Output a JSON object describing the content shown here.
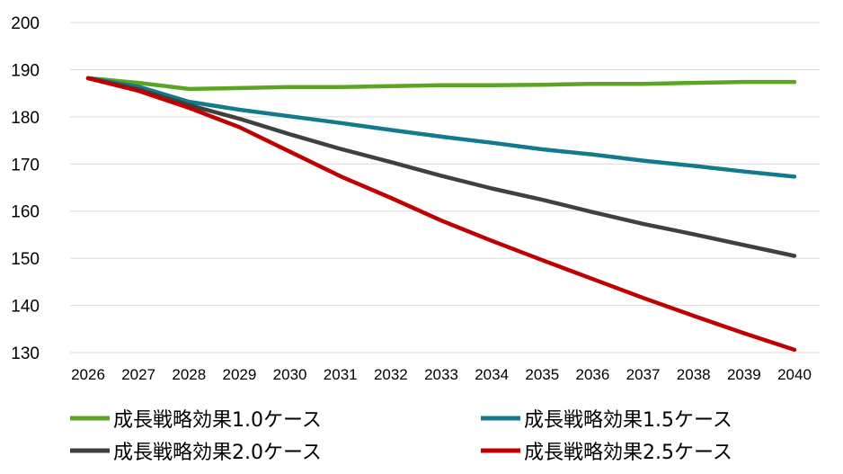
{
  "chart_data": {
    "type": "line",
    "x": [
      "2026",
      "2027",
      "2028",
      "2029",
      "2030",
      "2031",
      "2032",
      "2033",
      "2034",
      "2035",
      "2036",
      "2037",
      "2038",
      "2039",
      "2040"
    ],
    "ylim": [
      130,
      200
    ],
    "yticks": [
      200,
      190,
      180,
      170,
      160,
      150,
      140,
      130
    ],
    "grid": true,
    "legend_position": "bottom",
    "series": [
      {
        "name": "成長戦略効果1.0ケース",
        "color": "#5aa623",
        "values": [
          188.2,
          187.2,
          185.9,
          186.1,
          186.3,
          186.3,
          186.5,
          186.7,
          186.7,
          186.8,
          187.0,
          187.0,
          187.2,
          187.4,
          187.4
        ]
      },
      {
        "name": "成長戦略効果1.5ケース",
        "color": "#137a8e",
        "values": [
          188.2,
          186.4,
          183.2,
          181.5,
          180.1,
          178.7,
          177.2,
          175.8,
          174.5,
          173.1,
          172.0,
          170.7,
          169.6,
          168.4,
          167.3
        ]
      },
      {
        "name": "成長戦略効果2.0ケース",
        "color": "#404040",
        "values": [
          188.2,
          185.8,
          182.5,
          179.6,
          176.3,
          173.2,
          170.4,
          167.5,
          164.8,
          162.4,
          159.8,
          157.3,
          155.1,
          152.8,
          150.5
        ]
      },
      {
        "name": "成長戦略効果2.5ケース",
        "color": "#c00000",
        "values": [
          188.2,
          185.5,
          181.9,
          177.8,
          172.6,
          167.4,
          162.8,
          158.0,
          153.7,
          149.6,
          145.6,
          141.6,
          137.8,
          134.1,
          130.6
        ]
      }
    ]
  }
}
